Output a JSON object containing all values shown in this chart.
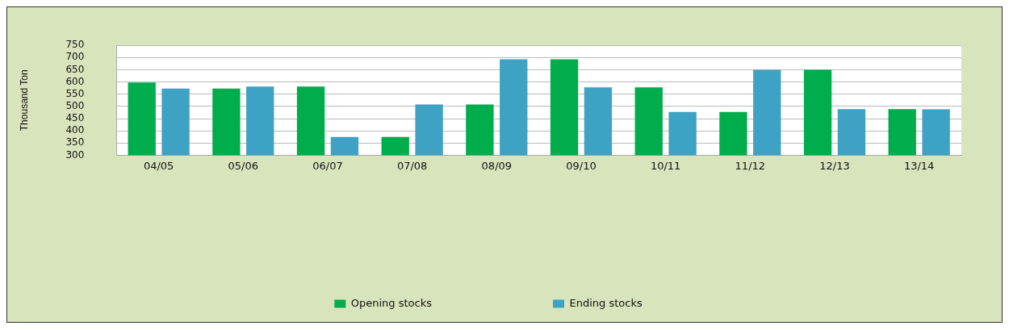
{
  "chart_data": {
    "type": "bar",
    "ylabel": "Thousand Ton",
    "categories": [
      "04/05",
      "05/06",
      "06/07",
      "07/08",
      "08/09",
      "09/10",
      "10/11",
      "11/12",
      "12/13",
      "13/14"
    ],
    "series": [
      {
        "name": "Opening stocks",
        "color": "#00ad4d",
        "values": [
          598,
          573,
          581,
          375,
          508,
          693,
          578,
          477,
          650,
          489
        ]
      },
      {
        "name": "Ending stocks",
        "color": "#3da2c3",
        "values": [
          573,
          581,
          375,
          508,
          693,
          578,
          477,
          650,
          489,
          488
        ]
      }
    ],
    "ylim": [
      300,
      750
    ],
    "yticks": [
      300,
      350,
      400,
      450,
      500,
      550,
      600,
      650,
      700,
      750
    ],
    "grid": "y",
    "legend": "bottom"
  }
}
